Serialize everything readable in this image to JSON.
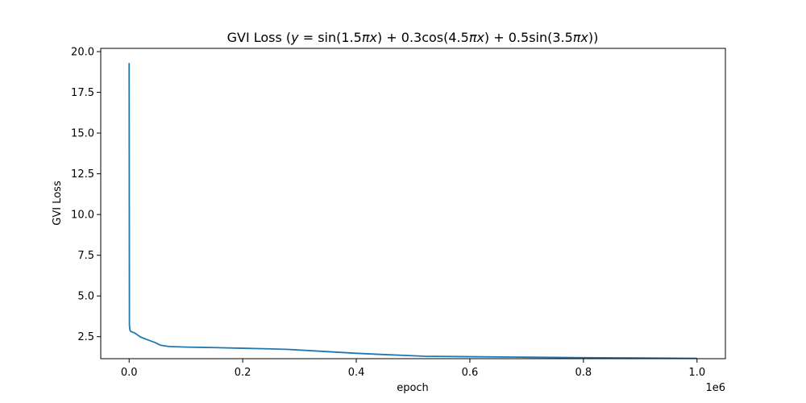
{
  "chart_data": {
    "type": "line",
    "title_prefix": "GVI Loss (",
    "title_parts": [
      {
        "text": "y",
        "italic": true
      },
      {
        "text": " = sin(1.5",
        "italic": false
      },
      {
        "text": "πx",
        "italic": true
      },
      {
        "text": ") + 0.3cos(4.5",
        "italic": false
      },
      {
        "text": "πx",
        "italic": true
      },
      {
        "text": ") + 0.5sin(3.5",
        "italic": false
      },
      {
        "text": "πx",
        "italic": true
      },
      {
        "text": "))",
        "italic": false
      }
    ],
    "xlabel": "epoch",
    "ylabel": "GVI Loss",
    "x_offset_label": "1e6",
    "xlim": [
      -50000,
      1050000
    ],
    "ylim": [
      1.15,
      20.2
    ],
    "x_ticks": [
      0,
      200000,
      400000,
      600000,
      800000,
      1000000
    ],
    "x_tick_labels": [
      "0.0",
      "0.2",
      "0.4",
      "0.6",
      "0.8",
      "1.0"
    ],
    "y_ticks": [
      2.5,
      5.0,
      7.5,
      10.0,
      12.5,
      15.0,
      17.5,
      20.0
    ],
    "y_tick_labels": [
      "2.5",
      "5.0",
      "7.5",
      "10.0",
      "12.5",
      "15.0",
      "17.5",
      "20.0"
    ],
    "series": [
      {
        "name": "GVI Loss",
        "color": "#1f77b4",
        "x": [
          0,
          500,
          1500,
          3000,
          6000,
          10000,
          20000,
          30000,
          45000,
          55000,
          70000,
          100000,
          150000,
          200000,
          250000,
          280000,
          300000,
          350000,
          400000,
          450000,
          500000,
          520000,
          600000,
          700000,
          800000,
          900000,
          1000000
        ],
        "y": [
          19.3,
          3.2,
          2.9,
          2.82,
          2.78,
          2.72,
          2.48,
          2.34,
          2.15,
          1.98,
          1.9,
          1.86,
          1.83,
          1.79,
          1.75,
          1.72,
          1.68,
          1.58,
          1.48,
          1.4,
          1.33,
          1.3,
          1.27,
          1.24,
          1.21,
          1.19,
          1.17
        ]
      }
    ]
  }
}
